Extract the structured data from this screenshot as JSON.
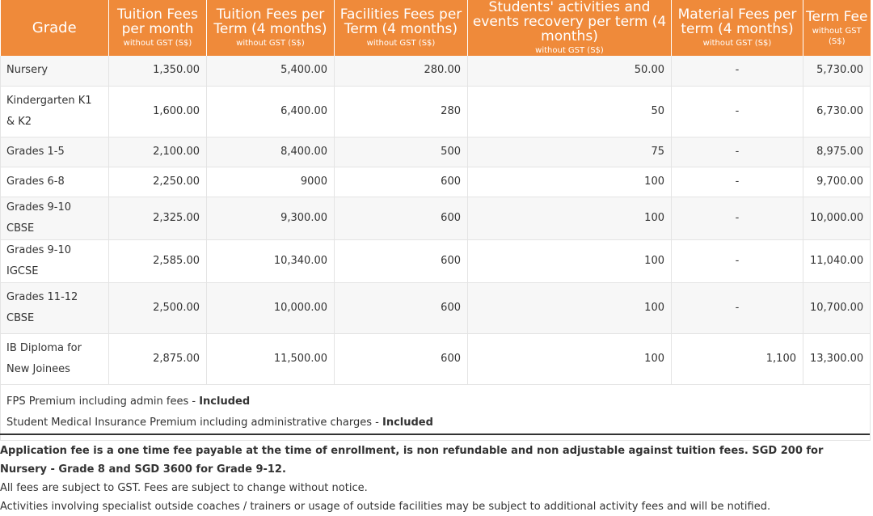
{
  "table": {
    "headers": [
      {
        "title": "Grade",
        "sub": ""
      },
      {
        "title": "Tuition Fees per month",
        "sub": "without GST (S$)"
      },
      {
        "title": "Tuition Fees per Term (4 months)",
        "sub": "without GST (S$)"
      },
      {
        "title": "Facilities Fees per Term (4 months)",
        "sub": "without GST (S$)"
      },
      {
        "title": "Students' activities and events recovery per term (4 months)",
        "sub": "without GST (S$)"
      },
      {
        "title": "Material Fees per term (4 months)",
        "sub": "without GST (S$)"
      },
      {
        "title": "Term Fee",
        "sub": "without GST (S$)"
      }
    ],
    "rows": [
      {
        "grade": "Nursery",
        "monthly": "1,350.00",
        "term_tuition": "5,400.00",
        "facilities": "280.00",
        "activities": "50.00",
        "material": "-",
        "term_fee": "5,730.00"
      },
      {
        "grade": "Kindergarten K1 & K2",
        "monthly": "1,600.00",
        "term_tuition": "6,400.00",
        "facilities": "280",
        "activities": "50",
        "material": "-",
        "term_fee": "6,730.00"
      },
      {
        "grade": "Grades 1-5",
        "monthly": "2,100.00",
        "term_tuition": "8,400.00",
        "facilities": "500",
        "activities": "75",
        "material": "-",
        "term_fee": "8,975.00"
      },
      {
        "grade": "Grades 6-8",
        "monthly": "2,250.00",
        "term_tuition": "9000",
        "facilities": "600",
        "activities": "100",
        "material": "-",
        "term_fee": "9,700.00"
      },
      {
        "grade": "Grades 9-10 CBSE",
        "monthly": "2,325.00",
        "term_tuition": "9,300.00",
        "facilities": "600",
        "activities": "100",
        "material": "-",
        "term_fee": "10,000.00"
      },
      {
        "grade": "Grades 9-10 IGCSE",
        "monthly": "2,585.00",
        "term_tuition": "10,340.00",
        "facilities": "600",
        "activities": "100",
        "material": "-",
        "term_fee": "11,040.00"
      },
      {
        "grade": "Grades 11-12 CBSE",
        "monthly": "2,500.00",
        "term_tuition": "10,000.00",
        "facilities": "600",
        "activities": "100",
        "material": "-",
        "term_fee": "10,700.00"
      },
      {
        "grade": "IB Diploma for New Joinees",
        "monthly": "2,875.00",
        "term_tuition": "11,500.00",
        "facilities": "600",
        "activities": "100",
        "material": "1,100",
        "term_fee": "13,300.00"
      }
    ],
    "notes": [
      {
        "text": "FPS Premium including admin fees - ",
        "emphasis": "Included"
      },
      {
        "text": "Student Medical Insurance Premium including administrative charges - ",
        "emphasis": "Included"
      }
    ]
  },
  "footer": {
    "application_fee": "Application fee is a one time fee payable at the time of enrollment, is non refundable and non adjustable against tuition fees. SGD 200 for Nursery - Grade 8 and SGD 3600 for Grade 9-12.",
    "gst_note": "All fees are subject to GST. Fees are subject to change without notice.",
    "activities_note": "Activities involving specialist outside coaches / trainers or usage of outside facilities may be subject to additional activity fees and will be notified."
  },
  "colors": {
    "header_bg": "#ef8a3a",
    "header_text": "#ffffff",
    "row_stripe": "#f7f7f7",
    "border": "#e4e4e4"
  }
}
